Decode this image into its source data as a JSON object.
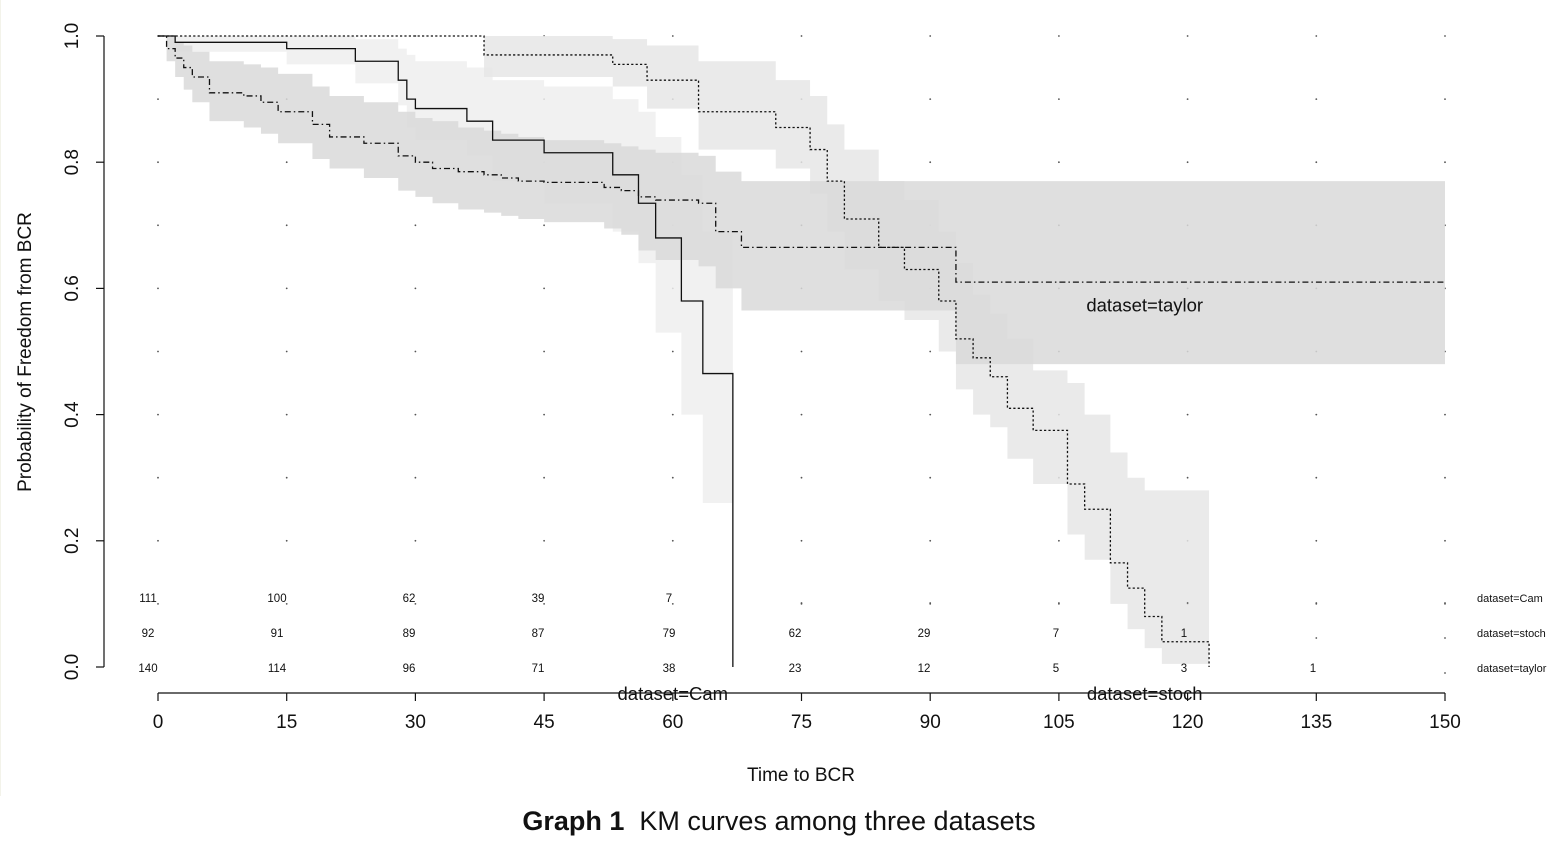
{
  "caption": {
    "label": "Graph 1",
    "text": "KM curves among three datasets"
  },
  "chart_data": {
    "type": "line",
    "subtype": "kaplan-meier-step",
    "xlabel": "Time to BCR",
    "ylabel": "Probability of Freedom from BCR",
    "xlim": [
      0,
      150
    ],
    "ylim": [
      0,
      1
    ],
    "xticks": [
      0,
      15,
      30,
      45,
      60,
      75,
      90,
      105,
      120,
      135,
      150
    ],
    "yticks": [
      0.0,
      0.2,
      0.4,
      0.6,
      0.8,
      1.0
    ],
    "grid": "dotted",
    "series": [
      {
        "name": "dataset=Cam",
        "line_style": "solid",
        "band_color": "#efefef",
        "x": [
          0,
          2,
          15,
          23,
          28,
          29,
          30,
          36,
          39,
          45,
          53,
          56,
          58,
          61,
          63.5,
          67
        ],
        "y": [
          1.0,
          0.99,
          0.98,
          0.96,
          0.93,
          0.9,
          0.885,
          0.865,
          0.835,
          0.815,
          0.78,
          0.735,
          0.68,
          0.58,
          0.465,
          0.0
        ],
        "lower": [
          1.0,
          0.975,
          0.955,
          0.925,
          0.89,
          0.855,
          0.835,
          0.81,
          0.77,
          0.735,
          0.69,
          0.64,
          0.53,
          0.4,
          0.26,
          0.26
        ],
        "upper": [
          1.0,
          1.0,
          1.0,
          0.995,
          0.98,
          0.97,
          0.96,
          0.95,
          0.93,
          0.92,
          0.9,
          0.88,
          0.84,
          0.78,
          0.69,
          0.69
        ],
        "x_end": 67
      },
      {
        "name": "dataset=stoch",
        "line_style": "dotted",
        "band_color": "#e6e6e6",
        "x": [
          0,
          38,
          53,
          57,
          63,
          72,
          76,
          78,
          80,
          84,
          87,
          91,
          93,
          95,
          97,
          99,
          102,
          106,
          108,
          111,
          113,
          115,
          117,
          122.5
        ],
        "y": [
          1.0,
          0.97,
          0.955,
          0.93,
          0.88,
          0.855,
          0.82,
          0.77,
          0.71,
          0.665,
          0.63,
          0.58,
          0.52,
          0.49,
          0.46,
          0.41,
          0.375,
          0.29,
          0.25,
          0.165,
          0.125,
          0.08,
          0.04,
          0.0
        ],
        "lower": [
          1.0,
          0.935,
          0.92,
          0.885,
          0.82,
          0.79,
          0.75,
          0.69,
          0.63,
          0.58,
          0.55,
          0.5,
          0.44,
          0.4,
          0.38,
          0.33,
          0.29,
          0.21,
          0.17,
          0.1,
          0.06,
          0.03,
          0.005,
          0.005
        ],
        "upper": [
          1.0,
          1.0,
          0.995,
          0.985,
          0.96,
          0.93,
          0.905,
          0.86,
          0.82,
          0.77,
          0.74,
          0.69,
          0.64,
          0.59,
          0.56,
          0.52,
          0.47,
          0.45,
          0.4,
          0.34,
          0.3,
          0.28,
          0.28,
          0.28
        ],
        "x_end": 122.5
      },
      {
        "name": "dataset=taylor",
        "line_style": "dotdash",
        "band_color": "#d9d9d9",
        "x": [
          0,
          1,
          2,
          3,
          4,
          6,
          10,
          12,
          14,
          18,
          20,
          24,
          28,
          30,
          32,
          35,
          38,
          40,
          42,
          45,
          52,
          54,
          56,
          58,
          63,
          65,
          68,
          93,
          150
        ],
        "y": [
          1.0,
          0.98,
          0.965,
          0.95,
          0.935,
          0.91,
          0.905,
          0.895,
          0.88,
          0.86,
          0.84,
          0.83,
          0.81,
          0.8,
          0.79,
          0.785,
          0.78,
          0.775,
          0.77,
          0.768,
          0.76,
          0.755,
          0.745,
          0.74,
          0.735,
          0.69,
          0.665,
          0.61,
          0.61
        ],
        "lower": [
          1.0,
          0.96,
          0.935,
          0.915,
          0.895,
          0.865,
          0.855,
          0.845,
          0.83,
          0.805,
          0.79,
          0.775,
          0.755,
          0.745,
          0.735,
          0.725,
          0.72,
          0.715,
          0.71,
          0.705,
          0.695,
          0.685,
          0.66,
          0.645,
          0.635,
          0.6,
          0.565,
          0.48,
          0.48
        ],
        "upper": [
          1.0,
          1.0,
          0.99,
          0.985,
          0.975,
          0.96,
          0.955,
          0.95,
          0.94,
          0.92,
          0.905,
          0.895,
          0.88,
          0.87,
          0.865,
          0.855,
          0.85,
          0.845,
          0.84,
          0.835,
          0.83,
          0.825,
          0.82,
          0.815,
          0.81,
          0.785,
          0.77,
          0.77,
          0.77
        ],
        "x_end": 150
      }
    ],
    "curve_labels": [
      {
        "text": "dataset=taylor",
        "x": 115,
        "y": 0.573
      },
      {
        "text": "dataset=Cam",
        "x": 60,
        "y": -0.043
      },
      {
        "text": "dataset=stoch",
        "x": 115,
        "y": -0.043
      }
    ],
    "risk_table": {
      "times": [
        0,
        15,
        30,
        45,
        60,
        75,
        90,
        105,
        120,
        135
      ],
      "rows": [
        {
          "label": "dataset=Cam",
          "counts": [
            "111",
            "100",
            "62",
            "39",
            "7",
            "",
            "",
            "",
            "",
            ""
          ]
        },
        {
          "label": "dataset=stoch",
          "counts": [
            "92",
            "91",
            "89",
            "87",
            "79",
            "62",
            "29",
            "7",
            "1",
            ""
          ]
        },
        {
          "label": "dataset=taylor",
          "counts": [
            "140",
            "114",
            "96",
            "71",
            "38",
            "23",
            "12",
            "5",
            "3",
            "1"
          ]
        }
      ]
    }
  }
}
